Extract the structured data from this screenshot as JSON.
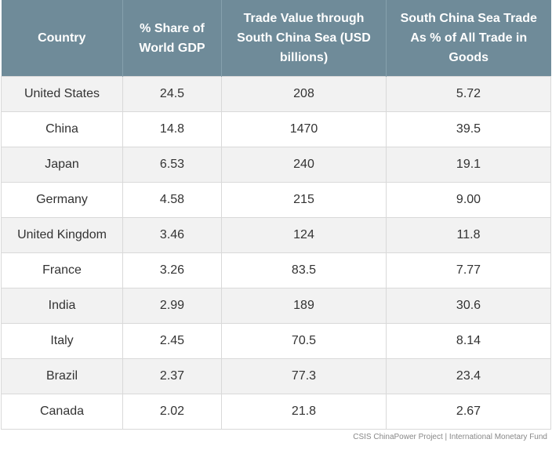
{
  "table": {
    "headers": [
      "Country",
      "% Share of World GDP",
      "Trade Value through South China Sea (USD billions)",
      "South China Sea Trade As % of All Trade in Goods"
    ],
    "rows": [
      [
        "United States",
        "24.5",
        "208",
        "5.72"
      ],
      [
        "China",
        "14.8",
        "1470",
        "39.5"
      ],
      [
        "Japan",
        "6.53",
        "240",
        "19.1"
      ],
      [
        "Germany",
        "4.58",
        "215",
        "9.00"
      ],
      [
        "United Kingdom",
        "3.46",
        "124",
        "11.8"
      ],
      [
        "France",
        "3.26",
        "83.5",
        "7.77"
      ],
      [
        "India",
        "2.99",
        "189",
        "30.6"
      ],
      [
        "Italy",
        "2.45",
        "70.5",
        "8.14"
      ],
      [
        "Brazil",
        "2.37",
        "77.3",
        "23.4"
      ],
      [
        "Canada",
        "2.02",
        "21.8",
        "2.67"
      ]
    ]
  },
  "source": "CSIS ChinaPower Project | International Monetary Fund",
  "colors": {
    "header_bg": "#6f8b99",
    "header_text": "#ffffff",
    "row_alt": "#f2f2f2"
  }
}
